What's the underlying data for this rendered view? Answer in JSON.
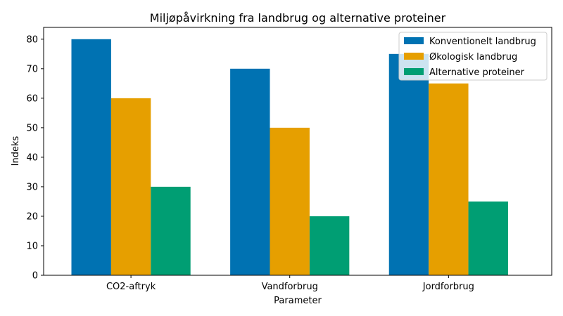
{
  "chart_data": {
    "type": "bar",
    "title": "Miljøpåvirkning fra landbrug og alternative proteiner",
    "xlabel": "Parameter",
    "ylabel": "Indeks",
    "categories": [
      "CO2-aftryk",
      "Vandforbrug",
      "Jordforbrug"
    ],
    "series": [
      {
        "name": "Konventionelt landbrug",
        "values": [
          80,
          70,
          75
        ],
        "color": "#0072b2"
      },
      {
        "name": "Økologisk landbrug",
        "values": [
          60,
          50,
          65
        ],
        "color": "#e69f00"
      },
      {
        "name": "Alternative proteiner",
        "values": [
          30,
          20,
          25
        ],
        "color": "#009e73"
      }
    ],
    "ylim": [
      0,
      84
    ],
    "yticks": [
      0,
      10,
      20,
      30,
      40,
      50,
      60,
      70,
      80
    ],
    "grid": false,
    "legend_position": "top-right"
  }
}
